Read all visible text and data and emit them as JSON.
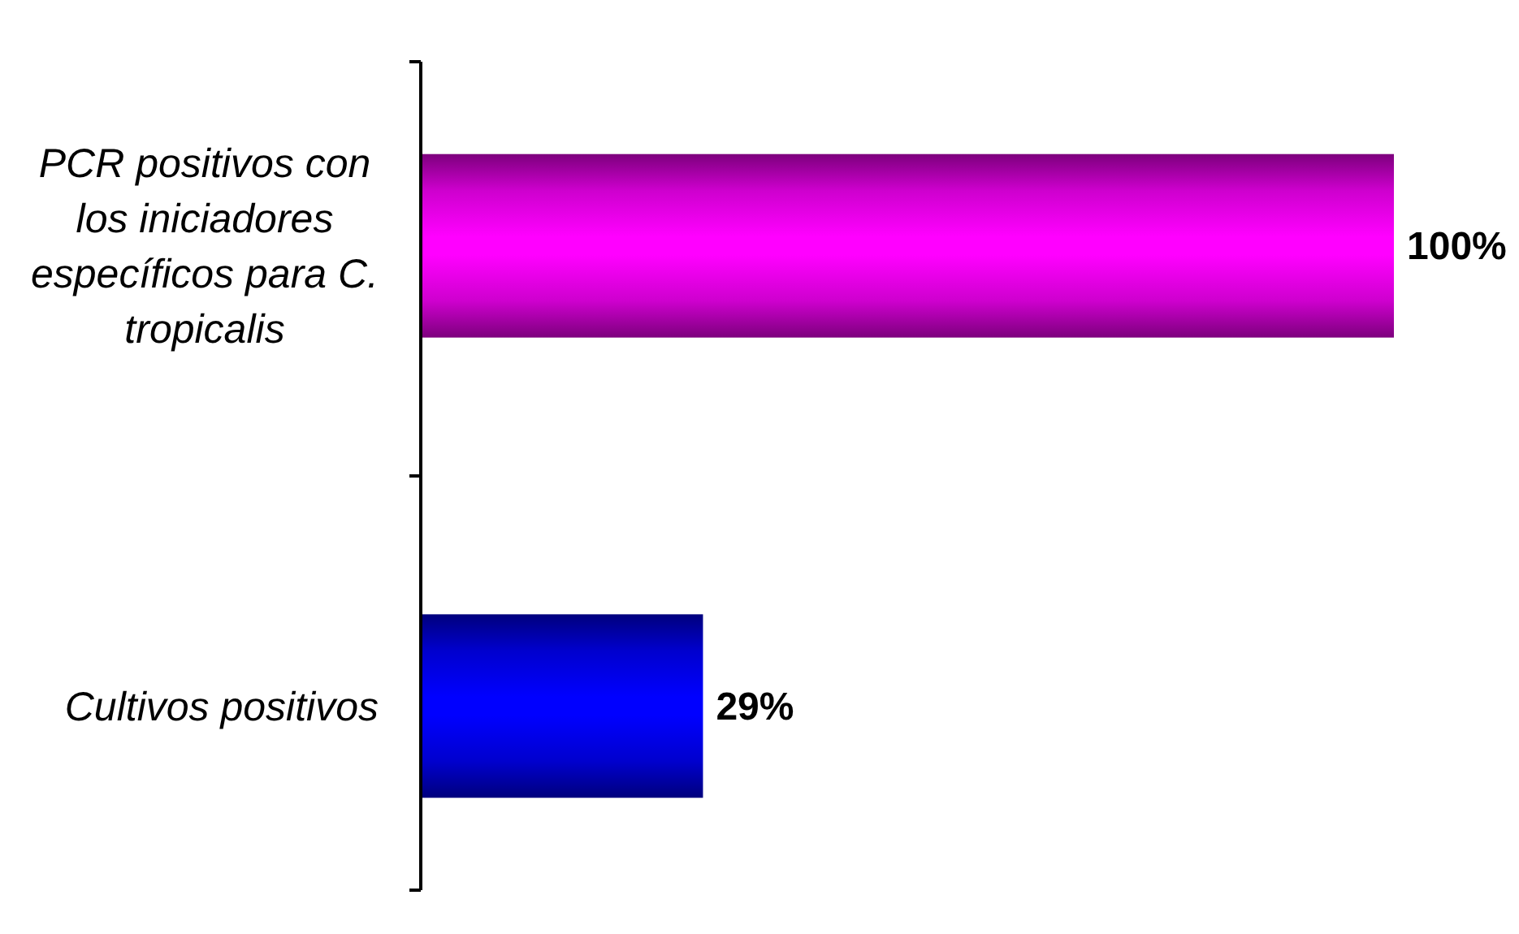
{
  "chart_data": {
    "type": "bar",
    "orientation": "horizontal",
    "categories": [
      "PCR positivos con los iniciadores específicos para C. tropicalis",
      "Cultivos positivos"
    ],
    "values": [
      100,
      29
    ],
    "colors": [
      "#ff00ff",
      "#0000ff"
    ],
    "value_labels": [
      "100%",
      "29%"
    ]
  }
}
